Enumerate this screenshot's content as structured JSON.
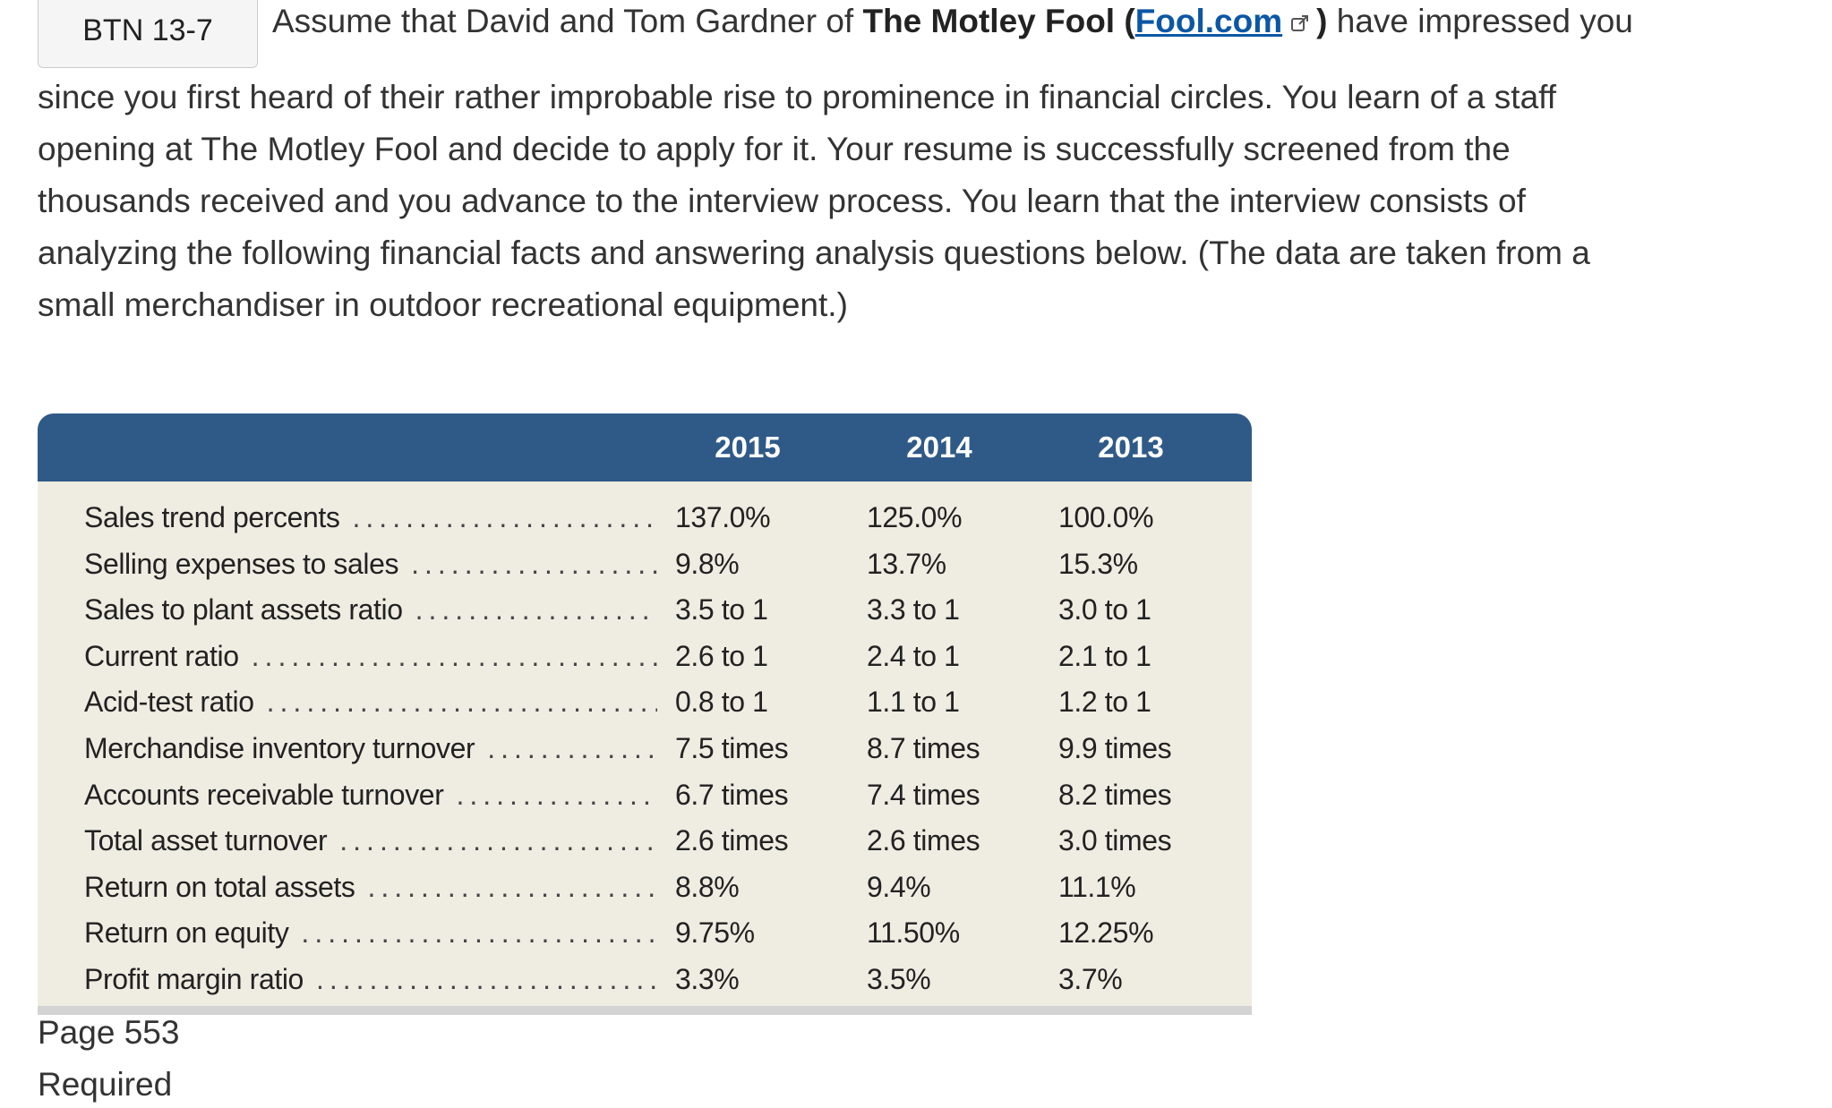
{
  "badge": "BTN 13-7",
  "lead": {
    "before": "Assume that David and Tom Gardner of ",
    "company_bold": "The Motley Fool (",
    "link_text": "Fool.com",
    "link_icon": "external-link-icon",
    "close_bold": ")",
    "after": " have impressed you"
  },
  "paragraph": {
    "lines": [
      "since you first heard of their rather improbable rise to prominence in financial circles. You learn of a staff",
      "opening at The Motley Fool and decide to apply for it. Your resume is successfully screened from the",
      "thousands received and you advance to the interview process. You learn that the interview consists of",
      "analyzing the following financial facts and answering analysis questions below. (The data are taken from a",
      "small merchandiser in outdoor recreational equipment.)"
    ]
  },
  "table": {
    "header_color": "#2f5a88",
    "body_color": "#efece2",
    "columns": [
      "2015",
      "2014",
      "2013"
    ],
    "rows": [
      {
        "label": "Sales trend percents",
        "values": [
          "137.0%",
          "125.0%",
          "100.0%"
        ]
      },
      {
        "label": "Selling expenses to sales",
        "values": [
          "9.8%",
          "13.7%",
          "15.3%"
        ]
      },
      {
        "label": "Sales to plant assets ratio",
        "values": [
          "3.5 to 1",
          "3.3 to 1",
          "3.0 to 1"
        ]
      },
      {
        "label": "Current ratio",
        "values": [
          "2.6 to 1",
          "2.4 to 1",
          "2.1 to 1"
        ]
      },
      {
        "label": "Acid-test ratio",
        "values": [
          "0.8 to 1",
          "1.1 to 1",
          "1.2 to 1"
        ]
      },
      {
        "label": "Merchandise inventory turnover",
        "values": [
          "7.5 times",
          "8.7 times",
          "9.9 times"
        ]
      },
      {
        "label": "Accounts receivable turnover",
        "values": [
          "6.7 times",
          "7.4 times",
          "8.2 times"
        ]
      },
      {
        "label": "Total asset turnover",
        "values": [
          "2.6 times",
          "2.6 times",
          "3.0 times"
        ]
      },
      {
        "label": "Return on total assets",
        "values": [
          "8.8%",
          "9.4%",
          "11.1%"
        ]
      },
      {
        "label": "Return on equity",
        "values": [
          "9.75%",
          "11.50%",
          "12.25%"
        ]
      },
      {
        "label": "Profit margin ratio",
        "values": [
          "3.3%",
          "3.5%",
          "3.7%"
        ]
      }
    ]
  },
  "footer": {
    "page": "Page 553",
    "required": "Required"
  }
}
